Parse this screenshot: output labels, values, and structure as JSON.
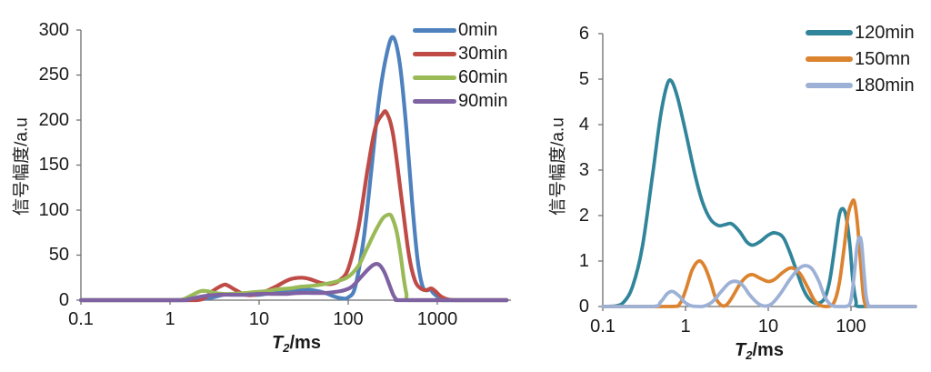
{
  "chart_data": [
    {
      "type": "line",
      "title": "",
      "x_scale": "log",
      "xlabel": {
        "var": "T",
        "sub": "2",
        "unit": "/ms"
      },
      "ylabel": "信号幅度/a.u",
      "xlim": [
        0.1,
        6000
      ],
      "ylim": [
        0,
        300
      ],
      "grid": false,
      "legend_position": "top-right",
      "xtick_labels": [
        "0.1",
        "1",
        "10",
        "100",
        "1000"
      ],
      "xtick_values": [
        0.1,
        1,
        10,
        100,
        1000
      ],
      "ytick_labels": [
        "300",
        "250",
        "200",
        "150",
        "100",
        "50",
        "0"
      ],
      "ytick_values": [
        300,
        250,
        200,
        150,
        100,
        50,
        0
      ],
      "series": [
        {
          "name": "0min",
          "color": "#4E81BD",
          "points": [
            [
              0.1,
              0
            ],
            [
              0.8,
              0
            ],
            [
              1.5,
              0
            ],
            [
              2,
              0.5
            ],
            [
              3,
              3
            ],
            [
              4,
              6
            ],
            [
              5,
              7
            ],
            [
              6.5,
              7
            ],
            [
              8,
              6
            ],
            [
              10,
              6
            ],
            [
              14,
              8
            ],
            [
              20,
              11
            ],
            [
              28,
              12
            ],
            [
              40,
              11
            ],
            [
              55,
              8
            ],
            [
              70,
              4
            ],
            [
              85,
              2
            ],
            [
              100,
              3
            ],
            [
              120,
              15
            ],
            [
              150,
              70
            ],
            [
              180,
              140
            ],
            [
              220,
              220
            ],
            [
              270,
              273
            ],
            [
              320,
              292
            ],
            [
              380,
              262
            ],
            [
              450,
              190
            ],
            [
              520,
              110
            ],
            [
              600,
              45
            ],
            [
              680,
              16
            ],
            [
              760,
              11
            ],
            [
              830,
              12
            ],
            [
              900,
              8
            ],
            [
              1000,
              4
            ],
            [
              1150,
              0
            ],
            [
              2000,
              0
            ],
            [
              6000,
              0
            ]
          ]
        },
        {
          "name": "30min",
          "color": "#BF4B47",
          "points": [
            [
              0.1,
              0
            ],
            [
              1,
              0
            ],
            [
              2,
              0
            ],
            [
              2.5,
              3
            ],
            [
              3,
              10
            ],
            [
              4,
              17
            ],
            [
              4.5,
              16
            ],
            [
              5.5,
              11
            ],
            [
              7,
              6
            ],
            [
              9,
              6
            ],
            [
              12,
              10
            ],
            [
              16,
              16
            ],
            [
              22,
              23
            ],
            [
              30,
              25
            ],
            [
              38,
              23
            ],
            [
              50,
              19
            ],
            [
              65,
              18
            ],
            [
              80,
              22
            ],
            [
              100,
              35
            ],
            [
              130,
              80
            ],
            [
              165,
              145
            ],
            [
              200,
              190
            ],
            [
              240,
              206
            ],
            [
              270,
              208
            ],
            [
              320,
              183
            ],
            [
              400,
              110
            ],
            [
              480,
              50
            ],
            [
              560,
              22
            ],
            [
              650,
              13
            ],
            [
              750,
              11
            ],
            [
              850,
              13
            ],
            [
              950,
              10
            ],
            [
              1100,
              4
            ],
            [
              1300,
              1
            ],
            [
              1600,
              0
            ],
            [
              3000,
              0
            ],
            [
              6000,
              0
            ]
          ]
        },
        {
          "name": "60min",
          "color": "#9ABA58",
          "points": [
            [
              0.1,
              0
            ],
            [
              1,
              0
            ],
            [
              1.4,
              1
            ],
            [
              1.8,
              6
            ],
            [
              2.2,
              10
            ],
            [
              2.6,
              10
            ],
            [
              3.2,
              8
            ],
            [
              4,
              7
            ],
            [
              5,
              7
            ],
            [
              7,
              8
            ],
            [
              9,
              9
            ],
            [
              12,
              10
            ],
            [
              16,
              12
            ],
            [
              22,
              13
            ],
            [
              30,
              15
            ],
            [
              40,
              16
            ],
            [
              55,
              18
            ],
            [
              75,
              21
            ],
            [
              100,
              26
            ],
            [
              130,
              38
            ],
            [
              160,
              56
            ],
            [
              200,
              76
            ],
            [
              245,
              91
            ],
            [
              285,
              95
            ],
            [
              310,
              92
            ],
            [
              350,
              76
            ],
            [
              390,
              48
            ],
            [
              420,
              24
            ],
            [
              450,
              7
            ],
            [
              475,
              0
            ],
            [
              800,
              0
            ],
            [
              2000,
              0
            ],
            [
              6000,
              0
            ]
          ]
        },
        {
          "name": "90min",
          "color": "#7E62A1",
          "points": [
            [
              0.1,
              0
            ],
            [
              1.2,
              0
            ],
            [
              1.6,
              1
            ],
            [
              2,
              3
            ],
            [
              2.6,
              5
            ],
            [
              3.5,
              6
            ],
            [
              5,
              6
            ],
            [
              7,
              6
            ],
            [
              10,
              7
            ],
            [
              14,
              7
            ],
            [
              20,
              7
            ],
            [
              28,
              8
            ],
            [
              40,
              8
            ],
            [
              55,
              8
            ],
            [
              70,
              9
            ],
            [
              90,
              11
            ],
            [
              110,
              15
            ],
            [
              140,
              26
            ],
            [
              170,
              35
            ],
            [
              200,
              40
            ],
            [
              225,
              39
            ],
            [
              255,
              31
            ],
            [
              290,
              17
            ],
            [
              320,
              6
            ],
            [
              345,
              1
            ],
            [
              365,
              0
            ],
            [
              800,
              0
            ],
            [
              2000,
              0
            ],
            [
              6000,
              0
            ]
          ]
        }
      ]
    },
    {
      "type": "line",
      "title": "",
      "x_scale": "log",
      "xlabel": {
        "var": "T",
        "sub": "2",
        "unit": "/ms"
      },
      "ylabel": "信号幅度/a.u",
      "xlim": [
        0.1,
        600
      ],
      "ylim": [
        0,
        6
      ],
      "grid": false,
      "legend_position": "top-right",
      "xtick_labels": [
        "0.1",
        "1",
        "10",
        "100"
      ],
      "xtick_values": [
        0.1,
        1,
        10,
        100
      ],
      "ytick_labels": [
        "6",
        "5",
        "4",
        "3",
        "2",
        "1",
        "0"
      ],
      "ytick_values": [
        6,
        5,
        4,
        3,
        2,
        1,
        0
      ],
      "series": [
        {
          "name": "120min",
          "color": "#31859B",
          "points": [
            [
              0.1,
              0
            ],
            [
              0.14,
              0.01
            ],
            [
              0.18,
              0.1
            ],
            [
              0.23,
              0.45
            ],
            [
              0.3,
              1.3
            ],
            [
              0.4,
              2.9
            ],
            [
              0.5,
              4.2
            ],
            [
              0.6,
              4.88
            ],
            [
              0.68,
              4.95
            ],
            [
              0.8,
              4.6
            ],
            [
              1,
              3.85
            ],
            [
              1.3,
              2.9
            ],
            [
              1.6,
              2.3
            ],
            [
              2,
              1.92
            ],
            [
              2.5,
              1.78
            ],
            [
              3,
              1.8
            ],
            [
              3.6,
              1.82
            ],
            [
              4.5,
              1.65
            ],
            [
              5.5,
              1.42
            ],
            [
              6.5,
              1.35
            ],
            [
              8,
              1.43
            ],
            [
              10,
              1.57
            ],
            [
              12,
              1.62
            ],
            [
              15,
              1.53
            ],
            [
              18,
              1.22
            ],
            [
              22,
              0.78
            ],
            [
              27,
              0.35
            ],
            [
              33,
              0.12
            ],
            [
              40,
              0.07
            ],
            [
              48,
              0.18
            ],
            [
              55,
              0.55
            ],
            [
              63,
              1.25
            ],
            [
              72,
              2.0
            ],
            [
              80,
              2.15
            ],
            [
              88,
              1.95
            ],
            [
              97,
              1.35
            ],
            [
              105,
              0.6
            ],
            [
              115,
              0.12
            ],
            [
              125,
              0
            ],
            [
              300,
              0
            ],
            [
              600,
              0
            ]
          ]
        },
        {
          "name": "150mn",
          "color": "#DC8330",
          "points": [
            [
              0.1,
              0
            ],
            [
              0.65,
              0
            ],
            [
              0.85,
              0.06
            ],
            [
              1,
              0.35
            ],
            [
              1.2,
              0.8
            ],
            [
              1.45,
              1.0
            ],
            [
              1.7,
              0.88
            ],
            [
              2,
              0.55
            ],
            [
              2.3,
              0.2
            ],
            [
              2.7,
              0.03
            ],
            [
              3.1,
              0.03
            ],
            [
              3.6,
              0.18
            ],
            [
              4.5,
              0.48
            ],
            [
              5.5,
              0.66
            ],
            [
              6.5,
              0.7
            ],
            [
              8,
              0.62
            ],
            [
              10,
              0.55
            ],
            [
              12,
              0.6
            ],
            [
              15,
              0.75
            ],
            [
              19,
              0.85
            ],
            [
              24,
              0.73
            ],
            [
              30,
              0.42
            ],
            [
              36,
              0.14
            ],
            [
              43,
              0.02
            ],
            [
              52,
              0
            ],
            [
              62,
              0.08
            ],
            [
              72,
              0.5
            ],
            [
              82,
              1.25
            ],
            [
              92,
              2.0
            ],
            [
              102,
              2.28
            ],
            [
              110,
              2.3
            ],
            [
              120,
              1.8
            ],
            [
              132,
              0.85
            ],
            [
              142,
              0.2
            ],
            [
              152,
              0.02
            ],
            [
              165,
              0
            ],
            [
              400,
              0
            ],
            [
              600,
              0
            ]
          ]
        },
        {
          "name": "180min",
          "color": "#9DB1D6",
          "points": [
            [
              0.1,
              0
            ],
            [
              0.4,
              0
            ],
            [
              0.5,
              0.1
            ],
            [
              0.6,
              0.28
            ],
            [
              0.7,
              0.33
            ],
            [
              0.85,
              0.22
            ],
            [
              1,
              0.08
            ],
            [
              1.2,
              0.01
            ],
            [
              1.6,
              0
            ],
            [
              2.1,
              0.1
            ],
            [
              2.7,
              0.33
            ],
            [
              3.4,
              0.52
            ],
            [
              4.2,
              0.55
            ],
            [
              5,
              0.45
            ],
            [
              6,
              0.25
            ],
            [
              7.5,
              0.07
            ],
            [
              9,
              0.01
            ],
            [
              11,
              0.06
            ],
            [
              14,
              0.28
            ],
            [
              18,
              0.58
            ],
            [
              23,
              0.82
            ],
            [
              28,
              0.9
            ],
            [
              34,
              0.82
            ],
            [
              41,
              0.55
            ],
            [
              48,
              0.22
            ],
            [
              56,
              0.05
            ],
            [
              65,
              0
            ],
            [
              85,
              0
            ],
            [
              98,
              0.08
            ],
            [
              108,
              0.6
            ],
            [
              118,
              1.3
            ],
            [
              126,
              1.52
            ],
            [
              134,
              1.4
            ],
            [
              143,
              0.8
            ],
            [
              152,
              0.25
            ],
            [
              162,
              0.03
            ],
            [
              175,
              0
            ],
            [
              400,
              0
            ],
            [
              600,
              0
            ]
          ]
        }
      ]
    }
  ]
}
